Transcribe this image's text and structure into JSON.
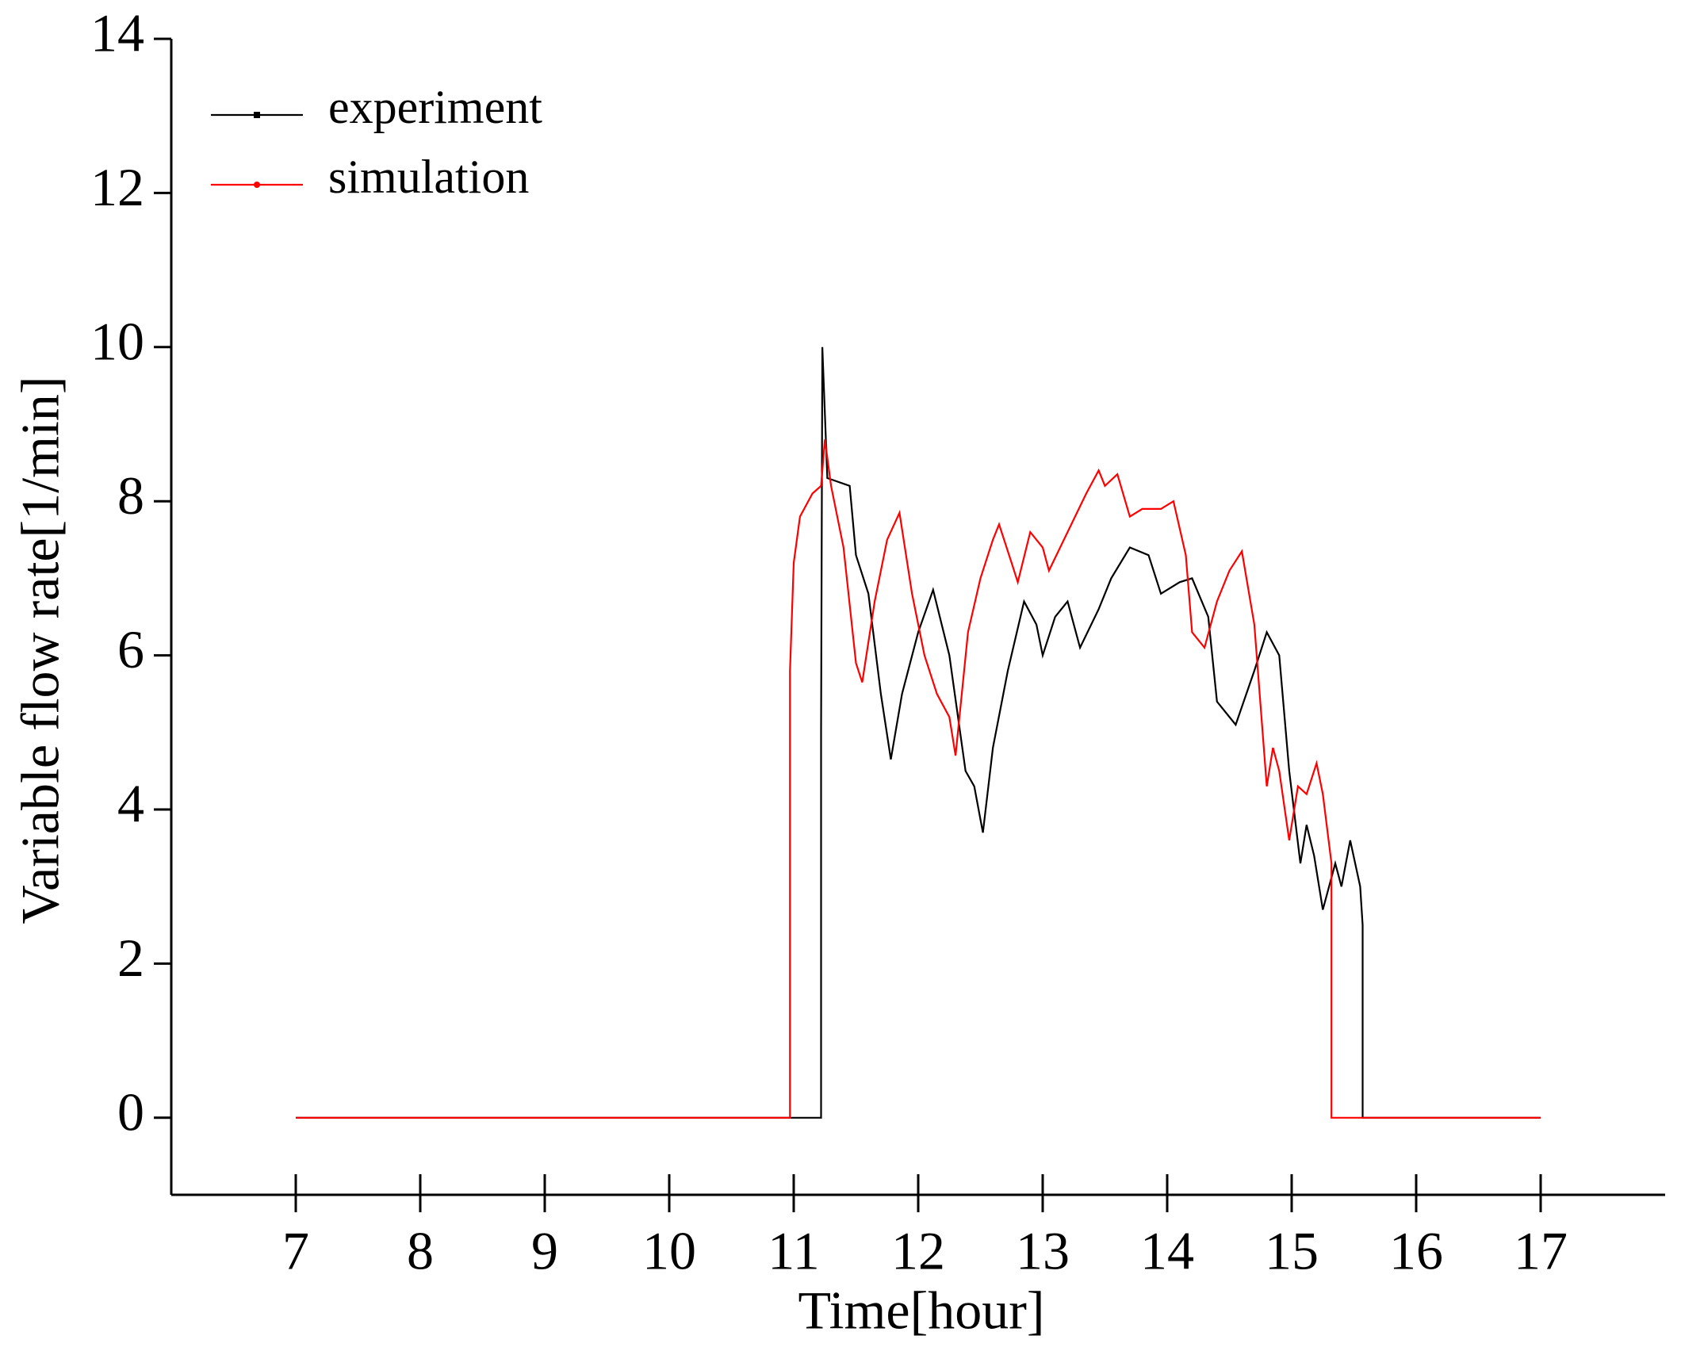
{
  "chart_data": {
    "type": "line",
    "xlabel": "Time[hour]",
    "ylabel": "Variable flow rate[1/min]",
    "xlim": [
      6,
      18
    ],
    "xticks": [
      7,
      8,
      9,
      10,
      11,
      12,
      13,
      14,
      15,
      16,
      17
    ],
    "ylim": [
      -1,
      14
    ],
    "yticks": [
      0,
      2,
      4,
      6,
      8,
      10,
      12,
      14
    ],
    "legend": "upper left",
    "series": [
      {
        "name": "experiment",
        "color": "#000000",
        "x": [
          7,
          11.22,
          11.22,
          11.23,
          11.27,
          11.45,
          11.5,
          11.6,
          11.7,
          11.78,
          11.87,
          12.0,
          12.12,
          12.25,
          12.38,
          12.45,
          12.52,
          12.6,
          12.72,
          12.85,
          12.95,
          13.0,
          13.1,
          13.2,
          13.3,
          13.45,
          13.55,
          13.7,
          13.85,
          13.95,
          14.1,
          14.2,
          14.33,
          14.4,
          14.55,
          14.7,
          14.8,
          14.9,
          14.98,
          15.07,
          15.12,
          15.18,
          15.25,
          15.35,
          15.4,
          15.47,
          15.55,
          15.57,
          15.57,
          17
        ],
        "values": [
          0,
          0,
          5,
          10,
          8.3,
          8.2,
          7.3,
          6.8,
          5.5,
          4.65,
          5.5,
          6.3,
          6.85,
          6.0,
          4.5,
          4.3,
          3.7,
          4.8,
          5.8,
          6.7,
          6.4,
          6.0,
          6.5,
          6.7,
          6.1,
          6.6,
          7.0,
          7.4,
          7.3,
          6.8,
          6.95,
          7.0,
          6.5,
          5.4,
          5.1,
          5.8,
          6.3,
          6.0,
          4.5,
          3.3,
          3.8,
          3.4,
          2.7,
          3.3,
          3.0,
          3.6,
          3.0,
          2.5,
          0,
          0
        ]
      },
      {
        "name": "simulation",
        "color": "#ff0000",
        "x": [
          7,
          10.97,
          10.97,
          11.0,
          11.05,
          11.15,
          11.22,
          11.25,
          11.3,
          11.4,
          11.5,
          11.55,
          11.65,
          11.75,
          11.85,
          11.95,
          12.05,
          12.15,
          12.25,
          12.3,
          12.4,
          12.5,
          12.6,
          12.65,
          12.75,
          12.8,
          12.9,
          13.0,
          13.05,
          13.2,
          13.35,
          13.45,
          13.5,
          13.6,
          13.7,
          13.8,
          13.95,
          14.05,
          14.15,
          14.2,
          14.3,
          14.4,
          14.5,
          14.6,
          14.7,
          14.8,
          14.85,
          14.9,
          14.98,
          15.05,
          15.12,
          15.2,
          15.25,
          15.32,
          15.32,
          17
        ],
        "values": [
          0,
          0,
          5.8,
          7.2,
          7.8,
          8.1,
          8.2,
          8.8,
          8.2,
          7.4,
          5.9,
          5.65,
          6.7,
          7.5,
          7.85,
          6.8,
          6.0,
          5.5,
          5.2,
          4.7,
          6.3,
          7.0,
          7.5,
          7.7,
          7.2,
          6.95,
          7.6,
          7.4,
          7.1,
          7.6,
          8.1,
          8.4,
          8.2,
          8.35,
          7.8,
          7.9,
          7.9,
          8.0,
          7.3,
          6.3,
          6.1,
          6.7,
          7.1,
          7.35,
          6.4,
          4.3,
          4.8,
          4.5,
          3.6,
          4.3,
          4.2,
          4.6,
          4.2,
          3.3,
          0,
          0
        ]
      }
    ]
  }
}
